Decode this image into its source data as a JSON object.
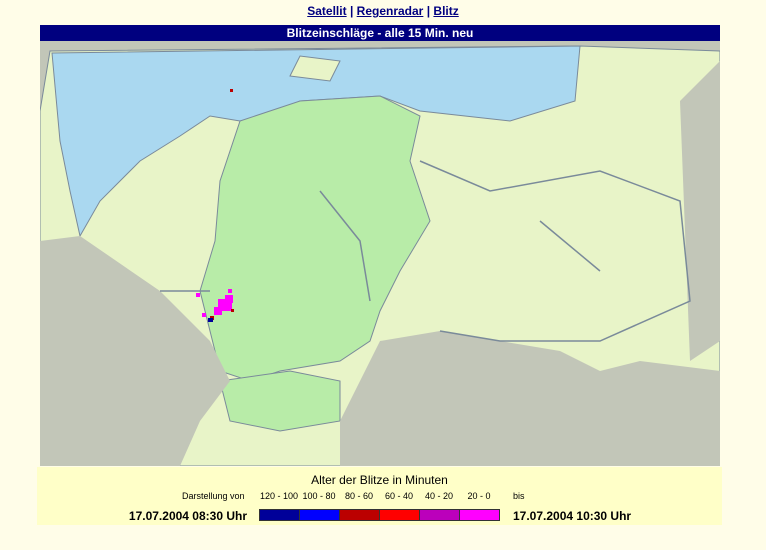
{
  "nav": {
    "links": [
      "Satellit",
      "Regenradar",
      "Blitz"
    ],
    "separator": "|"
  },
  "map": {
    "title": "Blitzeinschläge - alle 15 Min. neu"
  },
  "legend": {
    "title": "Alter der Blitze in Minuten",
    "from_label": "Darstellung von",
    "to_label": "bis",
    "start": "17.07.2004 08:30 Uhr",
    "end": "17.07.2004 10:30 Uhr",
    "items": [
      {
        "label": "120 - 100",
        "color": "#000099"
      },
      {
        "label": "100 - 80",
        "color": "#0000ff"
      },
      {
        "label": "80 - 60",
        "color": "#bb0000"
      },
      {
        "label": "60 - 40",
        "color": "#ff0000"
      },
      {
        "label": "40 - 20",
        "color": "#bb00bb"
      },
      {
        "label": "20 - 0",
        "color": "#ff00ff"
      }
    ]
  }
}
